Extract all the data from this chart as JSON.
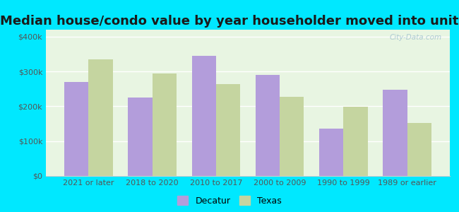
{
  "title": "Median house/condo value by year householder moved into unit",
  "categories": [
    "2021 or later",
    "2018 to 2020",
    "2010 to 2017",
    "2000 to 2009",
    "1990 to 1999",
    "1989 or earlier"
  ],
  "decatur_values": [
    270000,
    225000,
    345000,
    290000,
    135000,
    248000
  ],
  "texas_values": [
    335000,
    295000,
    263000,
    228000,
    198000,
    152000
  ],
  "decatur_color": "#b39ddb",
  "texas_color": "#c5d5a0",
  "background_color": "#00e8ff",
  "plot_bg_color": "#e8f5e2",
  "yticks": [
    0,
    100000,
    200000,
    300000,
    400000
  ],
  "ytick_labels": [
    "$0",
    "$100k",
    "$200k",
    "$300k",
    "$400k"
  ],
  "ylim": [
    0,
    420000
  ],
  "bar_width": 0.38,
  "legend_labels": [
    "Decatur",
    "Texas"
  ],
  "watermark": "City-Data.com",
  "title_fontsize": 13,
  "tick_fontsize": 8
}
